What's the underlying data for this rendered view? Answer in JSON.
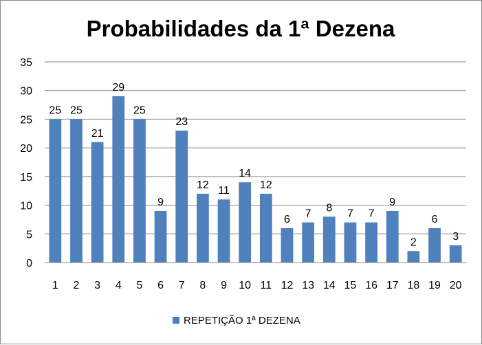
{
  "chart_data": {
    "type": "bar",
    "title": "Probabilidades da 1ª Dezena",
    "xlabel": "",
    "ylabel": "",
    "categories": [
      "1",
      "2",
      "3",
      "4",
      "5",
      "6",
      "7",
      "8",
      "9",
      "10",
      "11",
      "12",
      "13",
      "14",
      "15",
      "16",
      "17",
      "18",
      "19",
      "20"
    ],
    "series": [
      {
        "name": "REPETIÇÃO 1ª DEZENA",
        "values": [
          25,
          25,
          21,
          29,
          25,
          9,
          23,
          12,
          11,
          14,
          12,
          6,
          7,
          8,
          7,
          7,
          9,
          2,
          6,
          3
        ],
        "color": "#4f81bd"
      }
    ],
    "ylim": [
      0,
      35
    ],
    "yticks": [
      "0",
      "5",
      "10",
      "15",
      "20",
      "25",
      "30",
      "35"
    ],
    "grid": true,
    "data_labels": true,
    "legend_position": "bottom"
  }
}
